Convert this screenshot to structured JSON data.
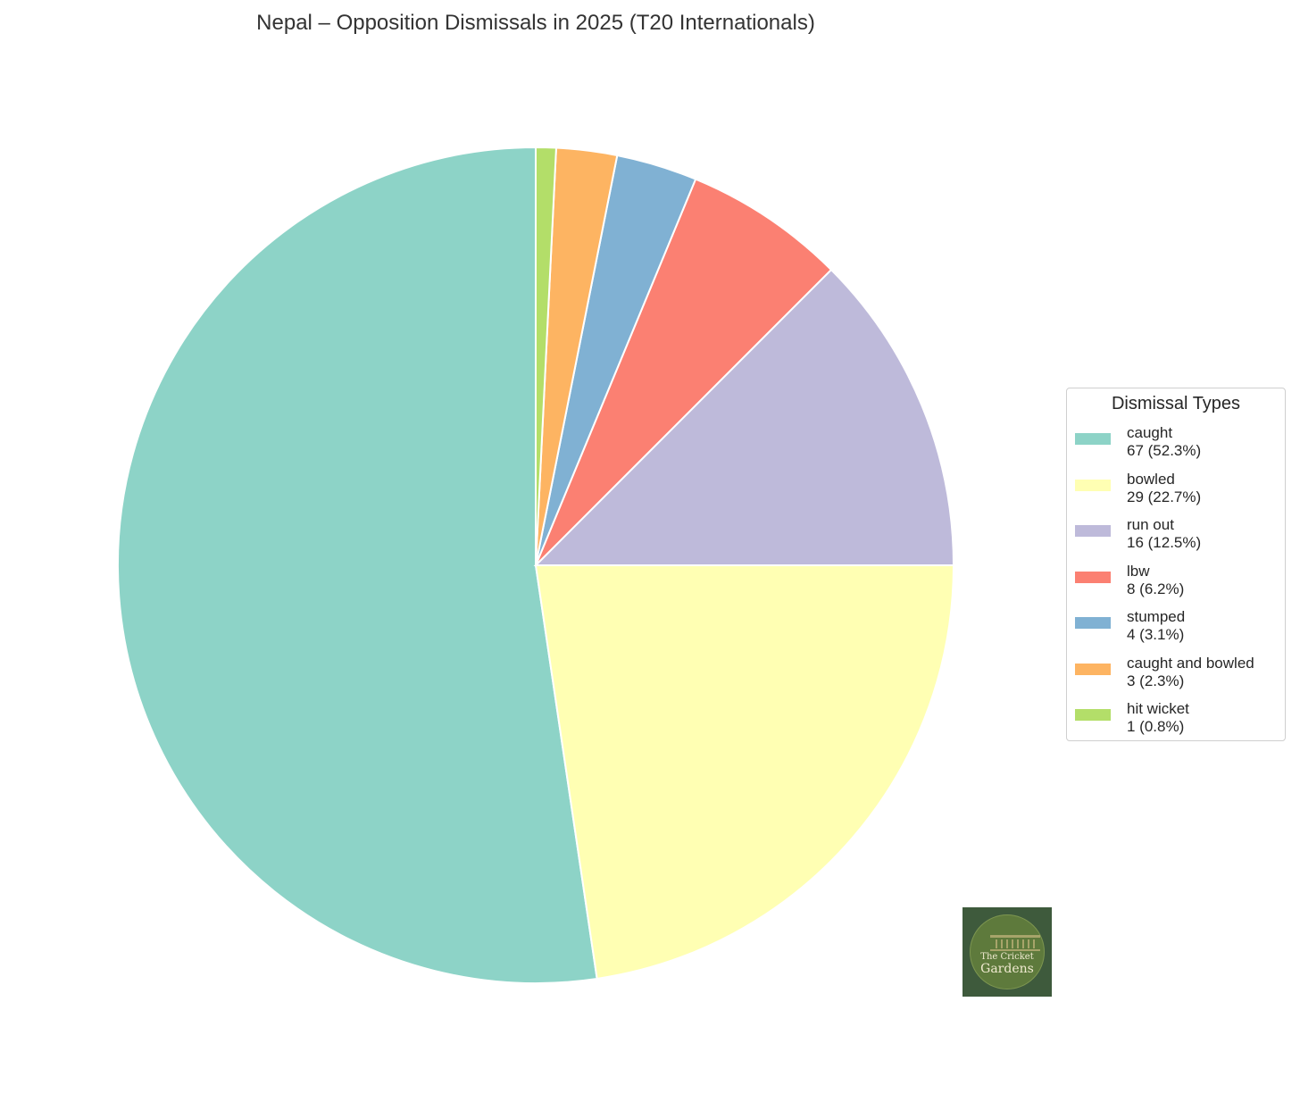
{
  "chart_data": {
    "type": "pie",
    "title": "Nepal – Opposition Dismissals in 2025 (T20 Internationals)",
    "legend_title": "Dismissal Types",
    "legend_position": "right",
    "start_angle": "top, clockwise order reversed (counterclockwise)",
    "slices": [
      {
        "label": "caught",
        "value": 67,
        "percent": "52.3%",
        "display": "67 (52.3%)",
        "color": "#8dd3c7"
      },
      {
        "label": "bowled",
        "value": 29,
        "percent": "22.7%",
        "display": "29 (22.7%)",
        "color": "#ffffb3"
      },
      {
        "label": "run out",
        "value": 16,
        "percent": "12.5%",
        "display": "16 (12.5%)",
        "color": "#bebada"
      },
      {
        "label": "lbw",
        "value": 8,
        "percent": "6.2%",
        "display": "8 (6.2%)",
        "color": "#fb8072"
      },
      {
        "label": "stumped",
        "value": 4,
        "percent": "3.1%",
        "display": "4 (3.1%)",
        "color": "#80b1d3"
      },
      {
        "label": "caught and bowled",
        "value": 3,
        "percent": "2.3%",
        "display": "3 (2.3%)",
        "color": "#fdb462"
      },
      {
        "label": "hit wicket",
        "value": 1,
        "percent": "0.8%",
        "display": "1 (0.8%)",
        "color": "#b3de69"
      }
    ]
  },
  "logo": {
    "line1": "The Cricket",
    "line2": "Gardens"
  }
}
